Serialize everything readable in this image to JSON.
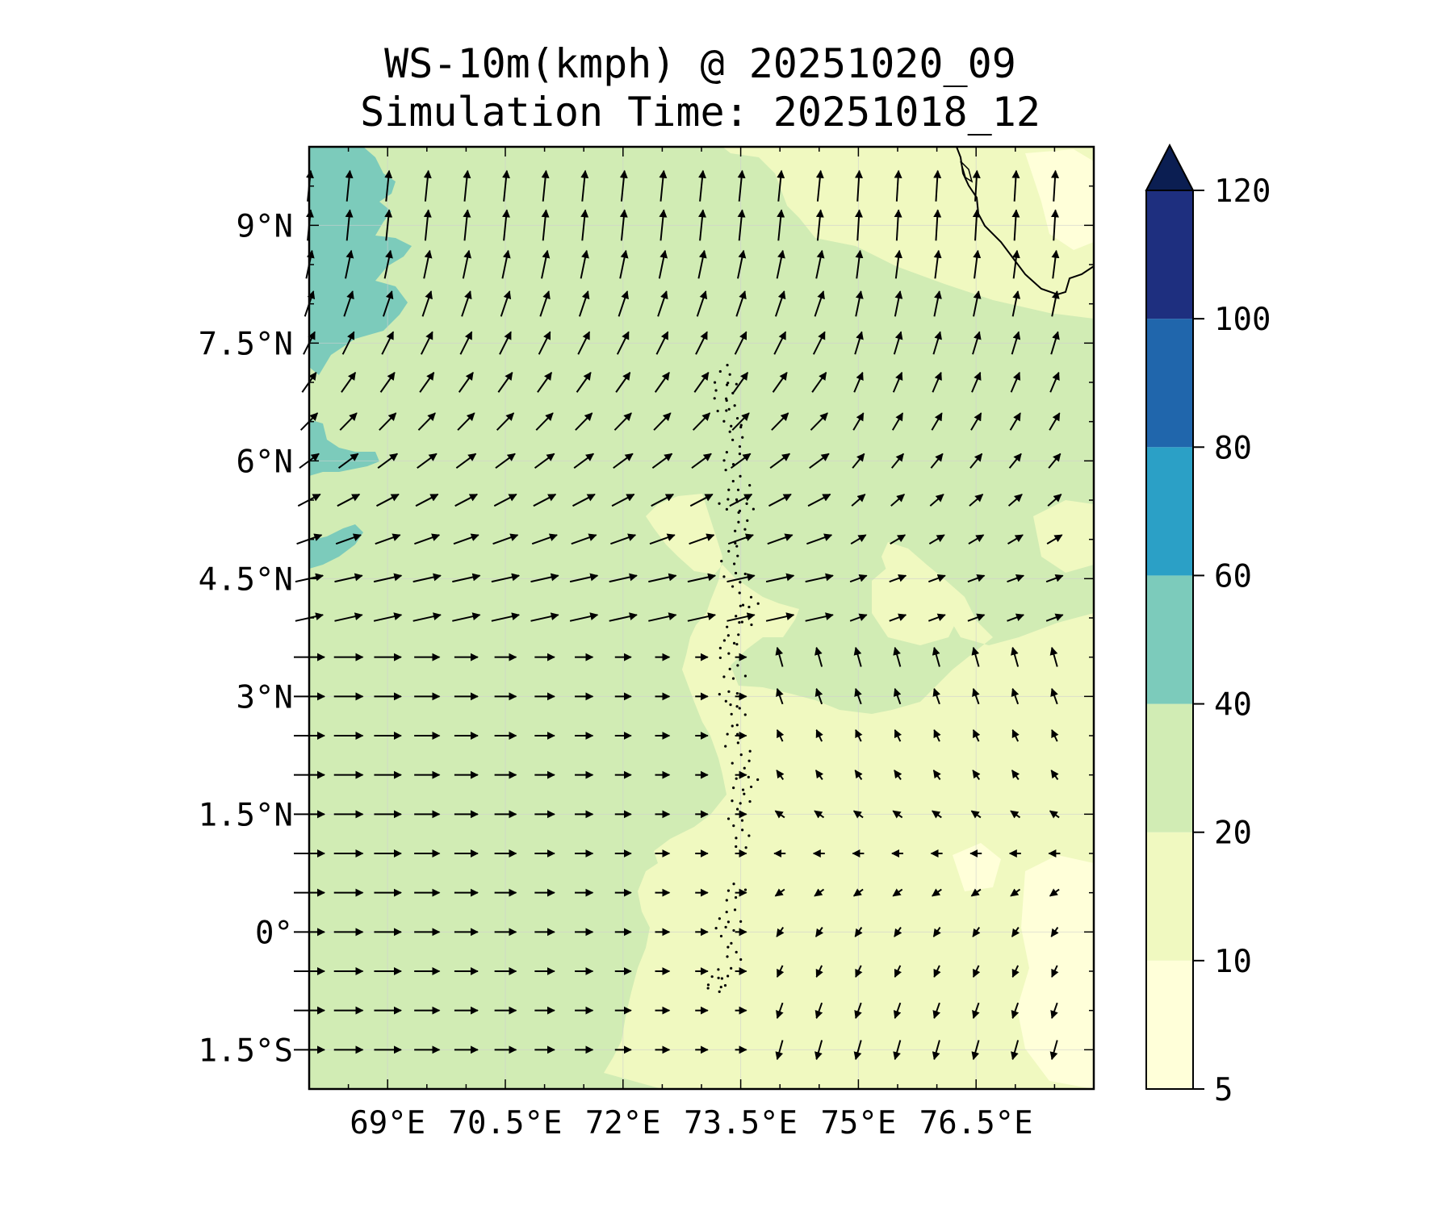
{
  "title": "WS-10m(kmph) @ 20251020_09",
  "subtitle": "Simulation Time: 20251018_12",
  "map": {
    "lon_range": [
      68.0,
      78.0
    ],
    "lat_range": [
      -2.0,
      10.0
    ],
    "grid_lines": true,
    "x_ticks": [
      {
        "value": 69.0,
        "label": "69°E"
      },
      {
        "value": 70.5,
        "label": "70.5°E"
      },
      {
        "value": 72.0,
        "label": "72°E"
      },
      {
        "value": 73.5,
        "label": "73.5°E"
      },
      {
        "value": 75.0,
        "label": "75°E"
      },
      {
        "value": 76.5,
        "label": "76.5°E"
      }
    ],
    "y_ticks": [
      {
        "value": 9.0,
        "label": "9°N"
      },
      {
        "value": 7.5,
        "label": "7.5°N"
      },
      {
        "value": 6.0,
        "label": "6°N"
      },
      {
        "value": 4.5,
        "label": "4.5°N"
      },
      {
        "value": 3.0,
        "label": "3°N"
      },
      {
        "value": 1.5,
        "label": "1.5°N"
      },
      {
        "value": 0.0,
        "label": "0°"
      },
      {
        "value": -1.5,
        "label": "1.5°S"
      }
    ],
    "features": [
      "India southern coastline",
      "Maldives atolls",
      "wind vectors"
    ]
  },
  "colorbar": {
    "extend": "max",
    "levels": [
      5,
      10,
      20,
      40,
      60,
      80,
      100,
      120
    ],
    "tick_labels": [
      "5",
      "10",
      "20",
      "40",
      "60",
      "80",
      "100",
      "120"
    ],
    "colors": [
      "#ffffd9",
      "#f0f9c0",
      "#d1ecb4",
      "#7ccbbb",
      "#2ba0c6",
      "#2066ac",
      "#1e2f7f",
      "#0b1e52"
    ]
  },
  "chart_data": {
    "type": "heatmap",
    "title": "WS-10m(kmph) @ 20251020_09",
    "subtitle": "Simulation Time: 20251018_12",
    "xlim": [
      68.0,
      78.0
    ],
    "ylim": [
      -2.0,
      10.0
    ],
    "regions": [
      {
        "range": "40-60",
        "location": "western edge 68-69.3E, 4.7-10N"
      },
      {
        "range": "20-40",
        "location": "western and central domain, 68-73E south of 4N, 68-78E north of 4N"
      },
      {
        "range": "10-20",
        "location": "northeast near India coast and southeast 73-78E, -2-4N"
      },
      {
        "range": "5-10",
        "location": "patches in far southeast and along northeast corner"
      }
    ],
    "wind": {
      "description": "Wind vectors: strong west/southwest flow in west, northward in north-central, weak easterly in southeast"
    }
  }
}
